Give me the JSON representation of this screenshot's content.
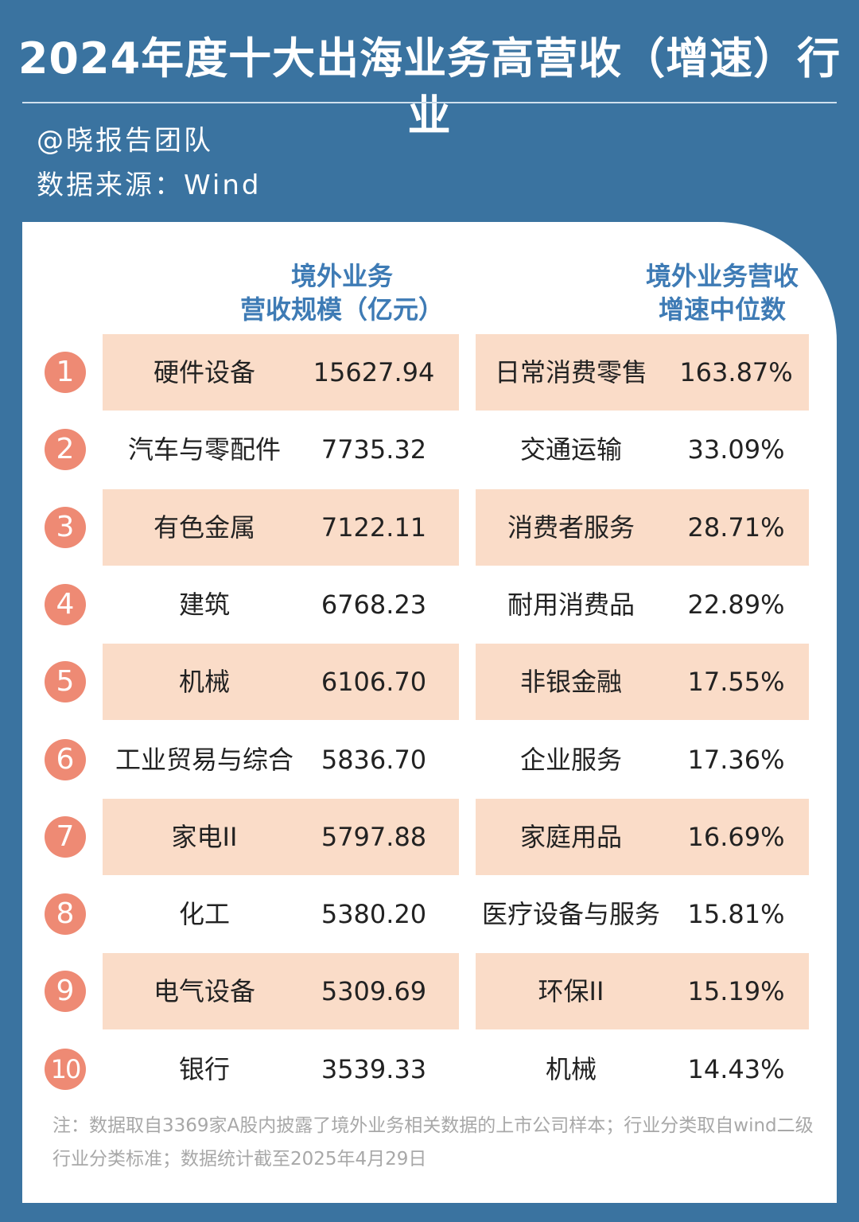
{
  "title": "2024年度十大出海业务高营收（增速）行业",
  "author": "@晓报告团队",
  "source": "数据来源：Wind",
  "chart_data": {
    "type": "table",
    "columns": [
      {
        "line1": "境外业务",
        "line2": "营收规模（亿元）"
      },
      {
        "line1": "境外业务营收",
        "line2": "增速中位数"
      }
    ],
    "rows": [
      {
        "rank": "1",
        "revenue_industry": "硬件设备",
        "revenue": "15627.94",
        "growth_industry": "日常消费零售",
        "growth": "163.87%"
      },
      {
        "rank": "2",
        "revenue_industry": "汽车与零配件",
        "revenue": "7735.32",
        "growth_industry": "交通运输",
        "growth": "33.09%"
      },
      {
        "rank": "3",
        "revenue_industry": "有色金属",
        "revenue": "7122.11",
        "growth_industry": "消费者服务",
        "growth": "28.71%"
      },
      {
        "rank": "4",
        "revenue_industry": "建筑",
        "revenue": "6768.23",
        "growth_industry": "耐用消费品",
        "growth": "22.89%"
      },
      {
        "rank": "5",
        "revenue_industry": "机械",
        "revenue": "6106.70",
        "growth_industry": "非银金融",
        "growth": "17.55%"
      },
      {
        "rank": "6",
        "revenue_industry": "工业贸易与综合",
        "revenue": "5836.70",
        "growth_industry": "企业服务",
        "growth": "17.36%"
      },
      {
        "rank": "7",
        "revenue_industry": "家电II",
        "revenue": "5797.88",
        "growth_industry": "家庭用品",
        "growth": "16.69%"
      },
      {
        "rank": "8",
        "revenue_industry": "化工",
        "revenue": "5380.20",
        "growth_industry": "医疗设备与服务",
        "growth": "15.81%"
      },
      {
        "rank": "9",
        "revenue_industry": "电气设备",
        "revenue": "5309.69",
        "growth_industry": "环保II",
        "growth": "15.19%"
      },
      {
        "rank": "10",
        "revenue_industry": "银行",
        "revenue": "3539.33",
        "growth_industry": "机械",
        "growth": "14.43%"
      }
    ],
    "colors": {
      "band": "#fadcc8",
      "rank_badge": "#ee8a74",
      "header": "#3e7bb5",
      "background": "#3a73a0"
    }
  },
  "note": "注：数据取自3369家A股内披露了境外业务相关数据的上市公司样本；行业分类取自wind二级行业分类标准；数据统计截至2025年4月29日"
}
